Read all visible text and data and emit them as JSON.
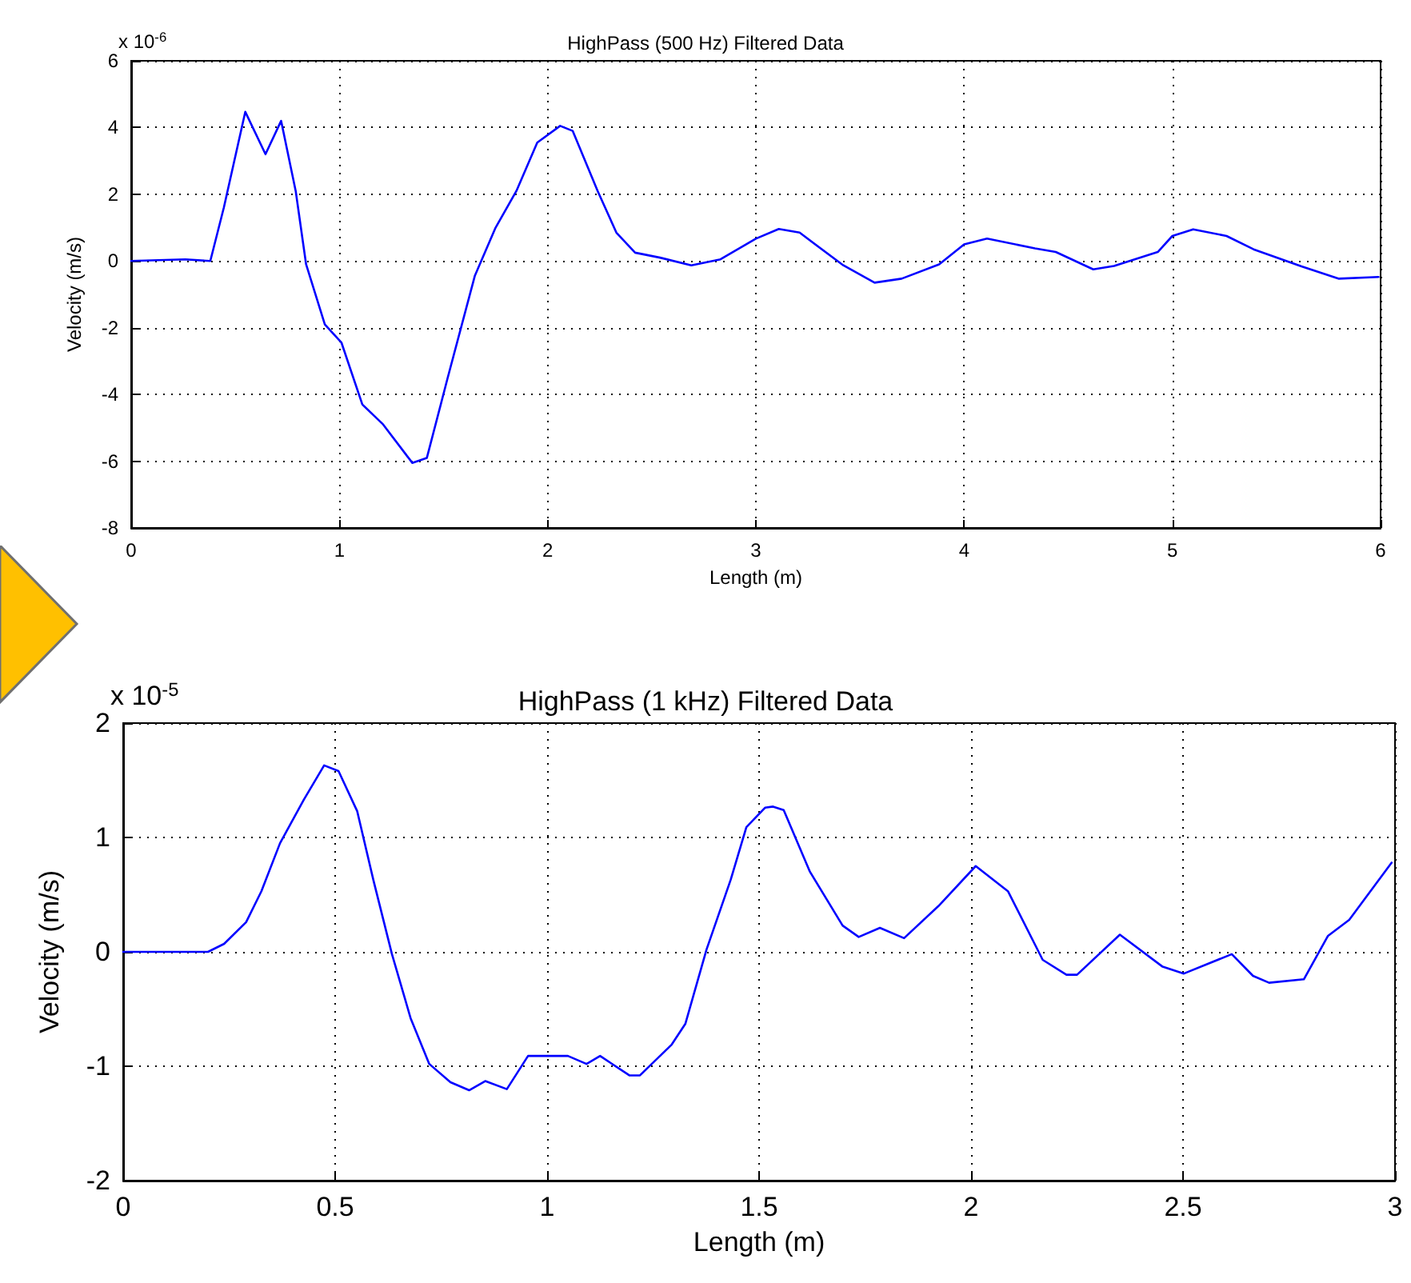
{
  "chart_data": [
    {
      "type": "line",
      "title": "HighPass (500 Hz) Filtered Data",
      "xlabel": "Length (m)",
      "ylabel": "Velocity (m/s)",
      "annotations": [
        "x 10$^{-6}$"
      ],
      "x": [
        0,
        0.26,
        0.38,
        0.445,
        0.548,
        0.645,
        0.72,
        0.79,
        0.84,
        0.93,
        1.01,
        1.11,
        1.21,
        1.35,
        1.42,
        1.52,
        1.65,
        1.75,
        1.85,
        1.95,
        2.06,
        2.12,
        2.24,
        2.33,
        2.42,
        2.54,
        2.69,
        2.83,
        3.0,
        3.11,
        3.21,
        3.42,
        3.57,
        3.7,
        3.88,
        4.0,
        4.11,
        4.34,
        4.44,
        4.62,
        4.72,
        4.93,
        5.0,
        5.1,
        5.26,
        5.39,
        5.62,
        5.8,
        5.99
      ],
      "series": [
        {
          "color": "#0000ff",
          "values": [
            0,
            0.05,
            0,
            1.6,
            4.47,
            3.2,
            4.2,
            2.1,
            -0.1,
            -1.9,
            -2.45,
            -4.3,
            -4.9,
            -6.05,
            -5.9,
            -3.5,
            -0.45,
            1.0,
            2.1,
            3.55,
            4.05,
            3.9,
            2.1,
            0.85,
            0.25,
            0.1,
            -0.13,
            0.05,
            0.67,
            0.96,
            0.85,
            -0.13,
            -0.65,
            -0.53,
            -0.1,
            0.5,
            0.67,
            0.38,
            0.27,
            -0.25,
            -0.15,
            0.27,
            0.75,
            0.95,
            0.75,
            0.35,
            -0.16,
            -0.53,
            -0.48
          ]
        }
      ],
      "xlim": [
        0,
        6
      ],
      "xticks": [
        0,
        1,
        2,
        3,
        4,
        5,
        6
      ],
      "ylim": [
        -8,
        6
      ],
      "yticks": [
        -8,
        -6,
        -4,
        -2,
        0,
        2,
        4,
        6
      ],
      "grid": true
    },
    {
      "type": "line",
      "title": "HighPass (1 kHz) Filtered Data",
      "xlabel": "Length (m)",
      "ylabel": "Velocity (m/s)",
      "annotations": [
        "x 10$^{-5}$"
      ],
      "x": [
        0,
        0.2,
        0.238,
        0.29,
        0.326,
        0.37,
        0.426,
        0.474,
        0.508,
        0.552,
        0.59,
        0.634,
        0.678,
        0.722,
        0.772,
        0.816,
        0.854,
        0.905,
        0.955,
        1.049,
        1.093,
        1.125,
        1.194,
        1.219,
        1.294,
        1.326,
        1.376,
        1.433,
        1.47,
        1.514,
        1.533,
        1.558,
        1.62,
        1.697,
        1.735,
        1.785,
        1.842,
        1.923,
        2.011,
        2.087,
        2.169,
        2.225,
        2.25,
        2.351,
        2.452,
        2.502,
        2.615,
        2.665,
        2.703,
        2.785,
        2.842,
        2.892,
        2.992
      ],
      "series": [
        {
          "color": "#0000ff",
          "values": [
            0,
            0,
            0.07,
            0.26,
            0.53,
            0.95,
            1.33,
            1.63,
            1.58,
            1.23,
            0.63,
            -0.02,
            -0.58,
            -0.98,
            -1.14,
            -1.21,
            -1.13,
            -1.2,
            -0.91,
            -0.91,
            -0.98,
            -0.91,
            -1.08,
            -1.08,
            -0.81,
            -0.63,
            0.02,
            0.63,
            1.09,
            1.26,
            1.27,
            1.24,
            0.7,
            0.23,
            0.13,
            0.21,
            0.12,
            0.4,
            0.75,
            0.53,
            -0.07,
            -0.2,
            -0.2,
            0.15,
            -0.13,
            -0.19,
            -0.02,
            -0.21,
            -0.27,
            -0.24,
            0.14,
            0.28,
            0.78
          ]
        }
      ],
      "xlim": [
        0,
        3
      ],
      "xticks": [
        0,
        0.5,
        1,
        1.5,
        2,
        2.5,
        3
      ],
      "ylim": [
        -2,
        2
      ],
      "yticks": [
        -2,
        -1,
        0,
        1,
        2
      ],
      "grid": true
    }
  ]
}
